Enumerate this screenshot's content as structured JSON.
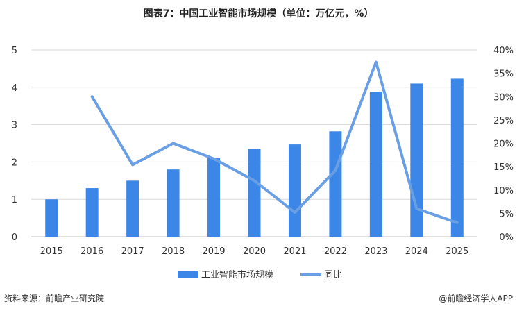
{
  "title": "图表7：中国工业智能市场规模（单位：万亿元，%）",
  "source": "资料来源：前瞻产业研究院",
  "brand": "@前瞻经济学人APP",
  "chart_data": {
    "type": "bar+line",
    "categories": [
      "2015",
      "2016",
      "2017",
      "2018",
      "2019",
      "2020",
      "2021",
      "2022",
      "2023",
      "2024",
      "2025"
    ],
    "series": [
      {
        "name": "工业智能市场规模",
        "type": "bar",
        "axis": "left",
        "color": "#3b86e6",
        "values": [
          1.0,
          1.3,
          1.5,
          1.8,
          2.1,
          2.35,
          2.47,
          2.82,
          3.88,
          4.1,
          4.23
        ]
      },
      {
        "name": "同比",
        "type": "line",
        "axis": "right",
        "color": "#6a9fe3",
        "values": [
          null,
          0.3,
          0.154,
          0.2,
          0.167,
          0.12,
          0.052,
          0.142,
          0.374,
          0.06,
          0.03
        ]
      }
    ],
    "y_left": {
      "ylim": [
        0,
        5
      ],
      "ticks": [
        "0",
        "1",
        "2",
        "3",
        "4",
        "5"
      ]
    },
    "y_right": {
      "ylim": [
        0,
        0.4
      ],
      "ticks": [
        "0%",
        "5%",
        "10%",
        "15%",
        "20%",
        "25%",
        "30%",
        "35%",
        "40%"
      ]
    },
    "grid": true,
    "legend_position": "bottom"
  }
}
